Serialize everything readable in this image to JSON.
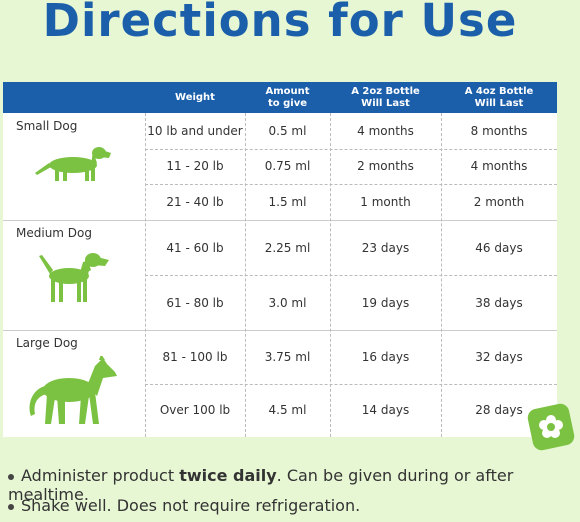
{
  "title": "Directions for Use",
  "table": {
    "header": [
      "Weight",
      "Amount to give",
      "A 2oz Bottle Will Last",
      "A 4oz Bottle Will Last"
    ],
    "groups": [
      {
        "name": "Small Dog",
        "rows": [
          [
            "10 lb and under",
            "0.5 ml",
            "4 months",
            "8 months"
          ],
          [
            "11 - 20 lb",
            "0.75 ml",
            "2 months",
            "4 months"
          ],
          [
            "21 - 40 lb",
            "1.5 ml",
            "1 month",
            "2 month"
          ]
        ]
      },
      {
        "name": "Medium Dog",
        "rows": [
          [
            "41 - 60 lb",
            "2.25 ml",
            "23 days",
            "46 days"
          ],
          [
            "61 - 80 lb",
            "3.0 ml",
            "19 days",
            "38 days"
          ]
        ]
      },
      {
        "name": "Large Dog",
        "rows": [
          [
            "81 - 100 lb",
            "3.75 ml",
            "16 days",
            "32 days"
          ],
          [
            "Over 100 lb",
            "4.5 ml",
            "14 days",
            "28 days"
          ]
        ]
      }
    ]
  },
  "bullets": [
    {
      "before": "Administer product ",
      "bold": "twice daily",
      "after": ". Can be given during or after mealtime."
    },
    {
      "before": "Shake well. Does not require refrigeration."
    }
  ]
}
